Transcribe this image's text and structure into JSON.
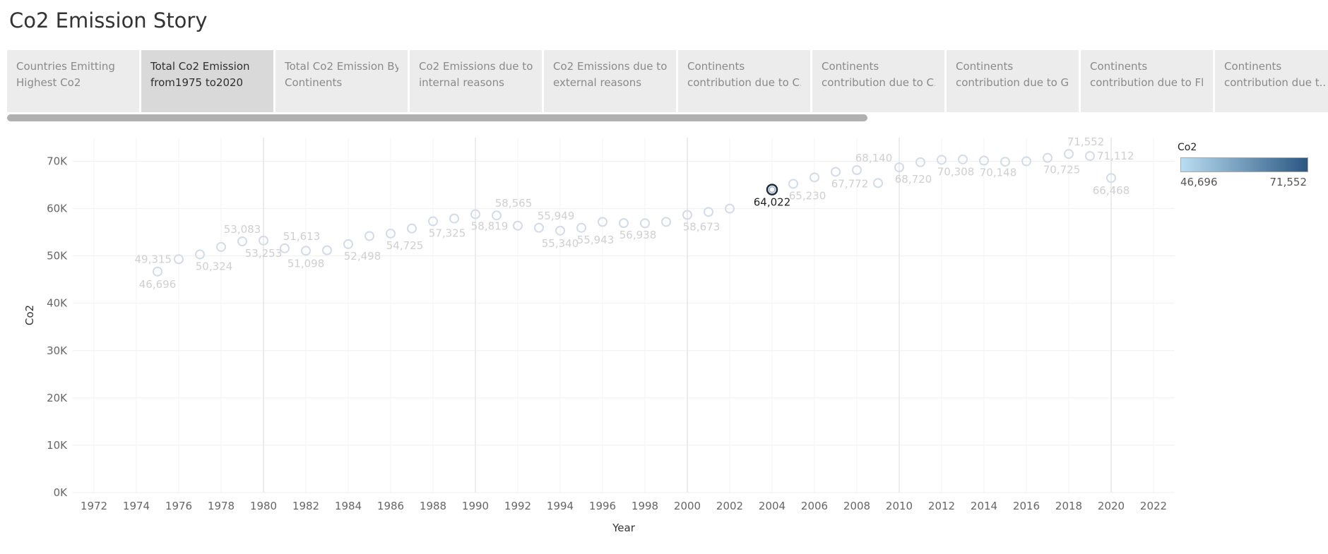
{
  "story": {
    "title": "Co2 Emission Story"
  },
  "tabs": [
    {
      "line1": "Countries Emitting",
      "line2": "Highest Co2",
      "active": false
    },
    {
      "line1": "Total Co2 Emission",
      "line2": "from1975 to2020",
      "active": true
    },
    {
      "line1": "Total Co2  Emission By",
      "line2": "Continents",
      "active": false
    },
    {
      "line1": "Co2 Emissions due to",
      "line2": "internal reasons",
      "active": false
    },
    {
      "line1": "Co2 Emissions due to",
      "line2": "external reasons",
      "active": false
    },
    {
      "line1": "Continents",
      "line2": "contribution due to C..",
      "active": false
    },
    {
      "line1": "Continents",
      "line2": "contribution due to C..",
      "active": false
    },
    {
      "line1": "Continents",
      "line2": "contribution due to G..",
      "active": false
    },
    {
      "line1": "Continents",
      "line2": "contribution due to Fl..",
      "active": false
    },
    {
      "line1": "Continents",
      "line2": "contribution due t..",
      "active": false
    }
  ],
  "legend": {
    "title": "Co2",
    "min_label": "46,696",
    "max_label": "71,552",
    "color_low": "#b9ddf1",
    "color_high": "#2a5783"
  },
  "chart_data": {
    "type": "scatter",
    "title": "",
    "xlabel": "Year",
    "ylabel": "Co2",
    "xlim": [
      1971,
      2023
    ],
    "ylim": [
      0,
      75000
    ],
    "xticks": [
      "1972",
      "1974",
      "1976",
      "1978",
      "1980",
      "1982",
      "1984",
      "1986",
      "1988",
      "1990",
      "1992",
      "1994",
      "1996",
      "1998",
      "2000",
      "2002",
      "2004",
      "2006",
      "2008",
      "2010",
      "2012",
      "2014",
      "2016",
      "2018",
      "2020",
      "2022"
    ],
    "yticks": [
      "0K",
      "10K",
      "20K",
      "30K",
      "40K",
      "50K",
      "60K",
      "70K"
    ],
    "highlighted_year": 2004,
    "marker_color": "#d3dbe6",
    "label_color": "#cfcfcf",
    "highlight_color": "#1d2b3a",
    "points": [
      {
        "x": 1975,
        "y": 46696,
        "label": "46,696",
        "pos": "below"
      },
      {
        "x": 1976,
        "y": 49315,
        "label": "49,315",
        "pos": "left"
      },
      {
        "x": 1977,
        "y": 50324,
        "label": "50,324",
        "pos": "below-right"
      },
      {
        "x": 1978,
        "y": 51900,
        "label": ""
      },
      {
        "x": 1979,
        "y": 53083,
        "label": "53,083",
        "pos": "above"
      },
      {
        "x": 1980,
        "y": 53253,
        "label": "53,253",
        "pos": "below"
      },
      {
        "x": 1981,
        "y": 51613,
        "label": "51,613",
        "pos": "above-right"
      },
      {
        "x": 1982,
        "y": 51098,
        "label": "51,098",
        "pos": "below"
      },
      {
        "x": 1983,
        "y": 51200,
        "label": ""
      },
      {
        "x": 1984,
        "y": 52498,
        "label": "52,498",
        "pos": "below-right"
      },
      {
        "x": 1985,
        "y": 54200,
        "label": ""
      },
      {
        "x": 1986,
        "y": 54725,
        "label": "54,725",
        "pos": "below-right"
      },
      {
        "x": 1987,
        "y": 55800,
        "label": ""
      },
      {
        "x": 1988,
        "y": 57325,
        "label": "57,325",
        "pos": "below-right"
      },
      {
        "x": 1989,
        "y": 57900,
        "label": ""
      },
      {
        "x": 1990,
        "y": 58819,
        "label": "58,819",
        "pos": "below-right"
      },
      {
        "x": 1991,
        "y": 58565,
        "label": "58,565",
        "pos": "above-right"
      },
      {
        "x": 1992,
        "y": 56400,
        "label": ""
      },
      {
        "x": 1993,
        "y": 55949,
        "label": "55,949",
        "pos": "above-right"
      },
      {
        "x": 1994,
        "y": 55340,
        "label": "55,340",
        "pos": "below"
      },
      {
        "x": 1995,
        "y": 55943,
        "label": "55,943",
        "pos": "below-right"
      },
      {
        "x": 1996,
        "y": 57200,
        "label": ""
      },
      {
        "x": 1997,
        "y": 56938,
        "label": "56,938",
        "pos": "below-right"
      },
      {
        "x": 1998,
        "y": 56900,
        "label": ""
      },
      {
        "x": 1999,
        "y": 57200,
        "label": ""
      },
      {
        "x": 2000,
        "y": 58673,
        "label": "58,673",
        "pos": "below-right"
      },
      {
        "x": 2001,
        "y": 59300,
        "label": ""
      },
      {
        "x": 2002,
        "y": 60000,
        "label": ""
      },
      {
        "x": 2004,
        "y": 64022,
        "label": "64,022",
        "pos": "below"
      },
      {
        "x": 2005,
        "y": 65230,
        "label": "65,230",
        "pos": "below-right"
      },
      {
        "x": 2006,
        "y": 66600,
        "label": ""
      },
      {
        "x": 2007,
        "y": 67772,
        "label": "67,772",
        "pos": "below-right"
      },
      {
        "x": 2008,
        "y": 68140,
        "label": "68,140",
        "pos": "above-right"
      },
      {
        "x": 2009,
        "y": 65400,
        "label": ""
      },
      {
        "x": 2010,
        "y": 68720,
        "label": "68,720",
        "pos": "below-right"
      },
      {
        "x": 2011,
        "y": 69800,
        "label": ""
      },
      {
        "x": 2012,
        "y": 70308,
        "label": "70,308",
        "pos": "below-right"
      },
      {
        "x": 2013,
        "y": 70400,
        "label": ""
      },
      {
        "x": 2014,
        "y": 70148,
        "label": "70,148",
        "pos": "below-right"
      },
      {
        "x": 2015,
        "y": 69900,
        "label": ""
      },
      {
        "x": 2016,
        "y": 70000,
        "label": ""
      },
      {
        "x": 2017,
        "y": 70725,
        "label": "70,725",
        "pos": "below-right"
      },
      {
        "x": 2018,
        "y": 71552,
        "label": "71,552",
        "pos": "above-right"
      },
      {
        "x": 2019,
        "y": 71112,
        "label": "71,112",
        "pos": "right"
      },
      {
        "x": 2020,
        "y": 66468,
        "label": "66,468",
        "pos": "below"
      }
    ]
  }
}
